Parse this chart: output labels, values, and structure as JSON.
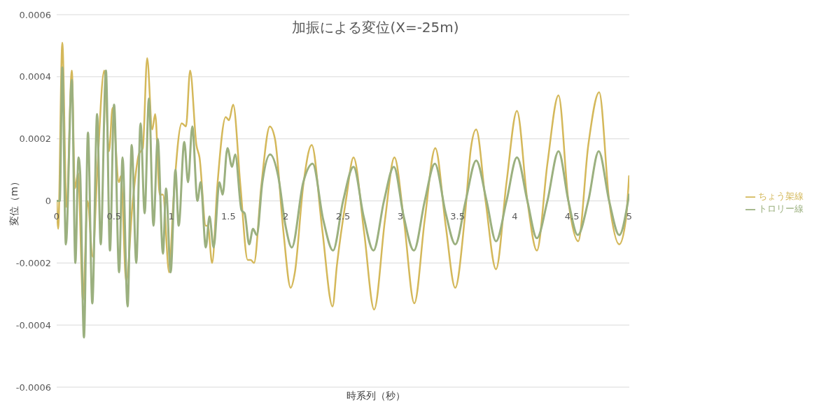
{
  "chart_data": {
    "type": "line",
    "title": "加振による変位(X=-25m)",
    "xlabel": "時系列（秒）",
    "ylabel": "変位（m）",
    "xlim": [
      0,
      5
    ],
    "xticks": [
      0,
      0.5,
      1,
      1.5,
      2,
      2.5,
      3,
      3.5,
      4,
      4.5,
      5
    ],
    "ylim": [
      -0.0006,
      0.0006
    ],
    "yticks": [
      -0.0006,
      -0.0004,
      -0.0002,
      0,
      0.0002,
      0.0004,
      0.0006
    ],
    "grid": "y",
    "legend": "right",
    "marker": "none",
    "line_style": "solid",
    "series": [
      {
        "name": "ちょう架線",
        "color": "#d4b85a",
        "x": [
          0,
          0.013,
          0.049,
          0.086,
          0.132,
          0.159,
          0.187,
          0.23,
          0.269,
          0.315,
          0.351,
          0.415,
          0.457,
          0.488,
          0.543,
          0.561,
          0.607,
          0.662,
          0.717,
          0.752,
          0.79,
          0.834,
          0.86,
          0.9,
          0.928,
          0.982,
          1.019,
          1.092,
          1.129,
          1.165,
          1.22,
          1.247,
          1.302,
          1.32,
          1.357,
          1.403,
          1.476,
          1.504,
          1.541,
          1.604,
          1.668,
          1.695,
          1.723,
          1.787,
          1.861,
          1.906,
          1.98,
          2.043,
          2.08,
          2.153,
          2.227,
          2.318,
          2.409,
          2.446,
          2.529,
          2.592,
          2.684,
          2.772,
          2.867,
          2.949,
          3.031,
          3.123,
          3.214,
          3.306,
          3.397,
          3.48,
          3.562,
          3.617,
          3.663,
          3.745,
          3.836,
          3.928,
          4.019,
          4.11,
          4.193,
          4.285,
          4.382,
          4.468,
          4.554,
          4.642,
          4.737,
          4.824,
          4.912,
          4.97,
          4.998
        ],
        "values": [
          0,
          -9e-05,
          0.00051,
          -2e-05,
          0.00042,
          4e-05,
          9e-05,
          -0.00032,
          0,
          -0.00018,
          7e-05,
          0.00042,
          0.00016,
          0.0003,
          6e-05,
          8e-05,
          -0.00026,
          -1e-05,
          0.00015,
          0.00017,
          0.00046,
          0.00023,
          0.00028,
          2e-05,
          2e-05,
          -0.00023,
          0,
          0.00025,
          0.00024,
          0.00042,
          0.00018,
          0.00014,
          -8e-05,
          -8e-05,
          -0.0002,
          5e-05,
          0.00027,
          0.00026,
          0.00031,
          5e-05,
          -0.00019,
          -0.00019,
          -0.0002,
          5e-05,
          0.00024,
          0.0002,
          -0.0001,
          -0.00028,
          -0.00023,
          5e-05,
          0.00018,
          -9e-05,
          -0.00034,
          -0.00021,
          1e-05,
          0.00014,
          -0.0001,
          -0.00035,
          -6e-05,
          0.00014,
          -6e-05,
          -0.00033,
          -6e-05,
          0.00017,
          -8e-05,
          -0.00028,
          -6e-05,
          0.00017,
          0.00023,
          0,
          -0.00022,
          6e-05,
          0.00029,
          0,
          -0.00016,
          0.00012,
          0.00034,
          0,
          -0.00013,
          0.00018,
          0.00035,
          0,
          -0.00014,
          -6e-05,
          8e-05
        ]
      },
      {
        "name": "トロリー線",
        "color": "#9bb07f",
        "x": [
          0,
          0.027,
          0.049,
          0.08,
          0.132,
          0.163,
          0.19,
          0.205,
          0.238,
          0.273,
          0.311,
          0.353,
          0.384,
          0.43,
          0.465,
          0.501,
          0.545,
          0.575,
          0.619,
          0.655,
          0.695,
          0.732,
          0.768,
          0.805,
          0.845,
          0.882,
          0.928,
          0.955,
          0.995,
          1.037,
          1.065,
          1.114,
          1.147,
          1.184,
          1.229,
          1.257,
          1.302,
          1.334,
          1.37,
          1.421,
          1.449,
          1.491,
          1.531,
          1.559,
          1.614,
          1.641,
          1.681,
          1.714,
          1.747,
          1.796,
          1.864,
          1.934,
          1.998,
          2.053,
          2.153,
          2.235,
          2.327,
          2.413,
          2.501,
          2.592,
          2.68,
          2.766,
          2.858,
          2.944,
          3.03,
          3.119,
          3.214,
          3.302,
          3.397,
          3.481,
          3.571,
          3.663,
          3.754,
          3.836,
          3.928,
          4.019,
          4.11,
          4.193,
          4.285,
          4.382,
          4.468,
          4.55,
          4.642,
          4.733,
          4.824,
          4.912,
          4.998
        ],
        "values": [
          0,
          0,
          0.00043,
          -0.00014,
          0.00039,
          -0.0002,
          0.00014,
          9e-05,
          -0.00044,
          0.00022,
          -0.00033,
          0.00028,
          -0.00014,
          0.00042,
          -0.00016,
          0.00031,
          -0.00023,
          0.00014,
          -0.00034,
          0.00018,
          -0.0002,
          0.00025,
          -4e-05,
          0.00033,
          -8e-05,
          0.0002,
          -0.00017,
          4e-05,
          -0.00023,
          0.0001,
          -8e-05,
          0.00019,
          6e-05,
          0.00024,
          0,
          6e-05,
          -0.00015,
          -5e-05,
          -0.00015,
          6e-05,
          2e-05,
          0.00017,
          0.00011,
          0.00015,
          -3e-05,
          -4e-05,
          -0.00014,
          -9e-05,
          -0.00011,
          6e-05,
          0.00015,
          8e-05,
          -8e-05,
          -0.00015,
          6e-05,
          0.00012,
          -6e-05,
          -0.00016,
          0,
          0.00011,
          -5e-05,
          -0.00016,
          0,
          0.00011,
          -5e-05,
          -0.00016,
          0,
          0.00012,
          -4e-05,
          -0.00014,
          0,
          0.00013,
          0,
          -0.00013,
          0,
          0.00014,
          0,
          -0.00012,
          0,
          0.00016,
          0,
          -0.00011,
          0,
          0.00016,
          0,
          -0.00011,
          2e-05
        ]
      }
    ]
  }
}
